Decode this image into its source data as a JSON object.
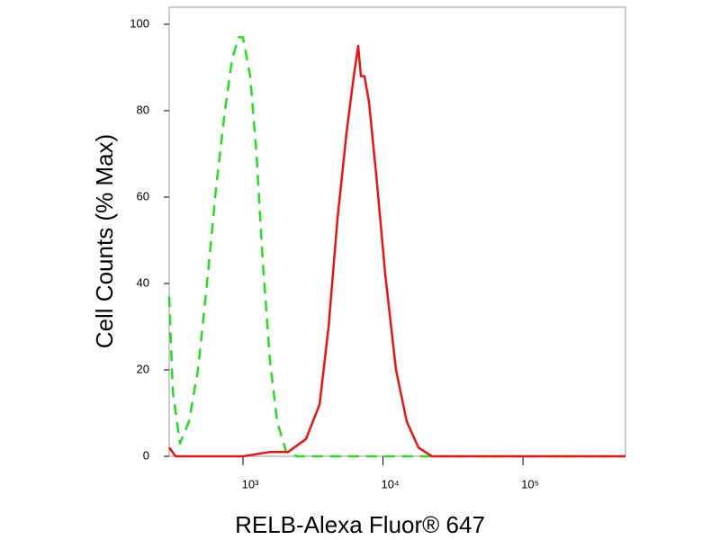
{
  "chart_data": {
    "type": "line",
    "x_label": "RELB-Alexa Fluor® 647",
    "y_label": "Cell Counts (% Max)",
    "xscale": "log",
    "xlim": [
      297,
      540000
    ],
    "ylim": [
      0,
      100
    ],
    "xticks": [
      {
        "value": 1000,
        "label": "10³"
      },
      {
        "value": 10000,
        "label": "10⁴"
      },
      {
        "value": 100000,
        "label": "10⁵"
      }
    ],
    "yticks": [
      0,
      20,
      40,
      60,
      80,
      100
    ],
    "series": [
      {
        "color": "#22dd22",
        "dash": true,
        "x": [
          297,
          315,
          355,
          411,
          477,
          553,
          641,
          743,
          837,
          929,
          1000,
          1126,
          1249,
          1385,
          1559,
          1755,
          2035,
          2432,
          540000
        ],
        "values": [
          37,
          15,
          3,
          8,
          20,
          40,
          62,
          80,
          92,
          97,
          97,
          88,
          70,
          45,
          22,
          8,
          1,
          0,
          0
        ]
      },
      {
        "color": "#ee1111",
        "dash": false,
        "x": [
          297,
          330,
          1000,
          1559,
          2099,
          2818,
          3522,
          4087,
          4735,
          5492,
          6183,
          6656,
          6955,
          7379,
          7943,
          8950,
          10380,
          12390,
          14790,
          17940,
          22390,
          540000
        ],
        "values": [
          2,
          0,
          0,
          1,
          1,
          4,
          12,
          30,
          55,
          75,
          88,
          95,
          88,
          88,
          82,
          65,
          42,
          20,
          8,
          2,
          0,
          0
        ]
      }
    ]
  }
}
